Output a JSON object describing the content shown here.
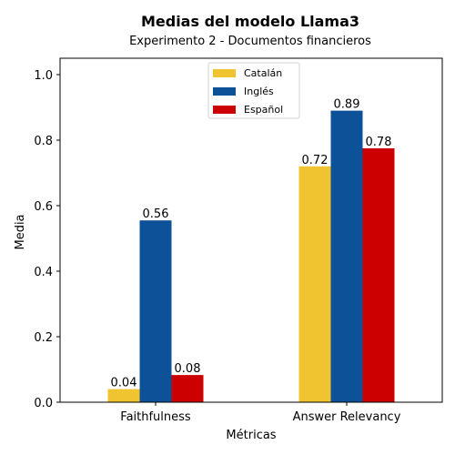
{
  "chart_data": {
    "type": "bar",
    "title": "Medias del modelo Llama3",
    "subtitle": "Experimento 2 - Documentos financieros",
    "xlabel": "Métricas",
    "ylabel": "Media",
    "ylim": [
      0,
      1.05
    ],
    "yticks": [
      0.0,
      0.2,
      0.4,
      0.6,
      0.8,
      1.0
    ],
    "categories": [
      "Faithfulness",
      "Answer Relevancy"
    ],
    "series": [
      {
        "name": "Catalán",
        "color": "#F0C430",
        "values": [
          0.04,
          0.72
        ],
        "labels": [
          "0.04",
          "0.72"
        ]
      },
      {
        "name": "Inglés",
        "color": "#0D5198",
        "values": [
          0.555,
          0.89
        ],
        "labels": [
          "0.56",
          "0.89"
        ]
      },
      {
        "name": "Español",
        "color": "#CC0000",
        "values": [
          0.083,
          0.775
        ],
        "labels": [
          "0.08",
          "0.78"
        ]
      }
    ],
    "legend": "top-center",
    "grid": false
  }
}
